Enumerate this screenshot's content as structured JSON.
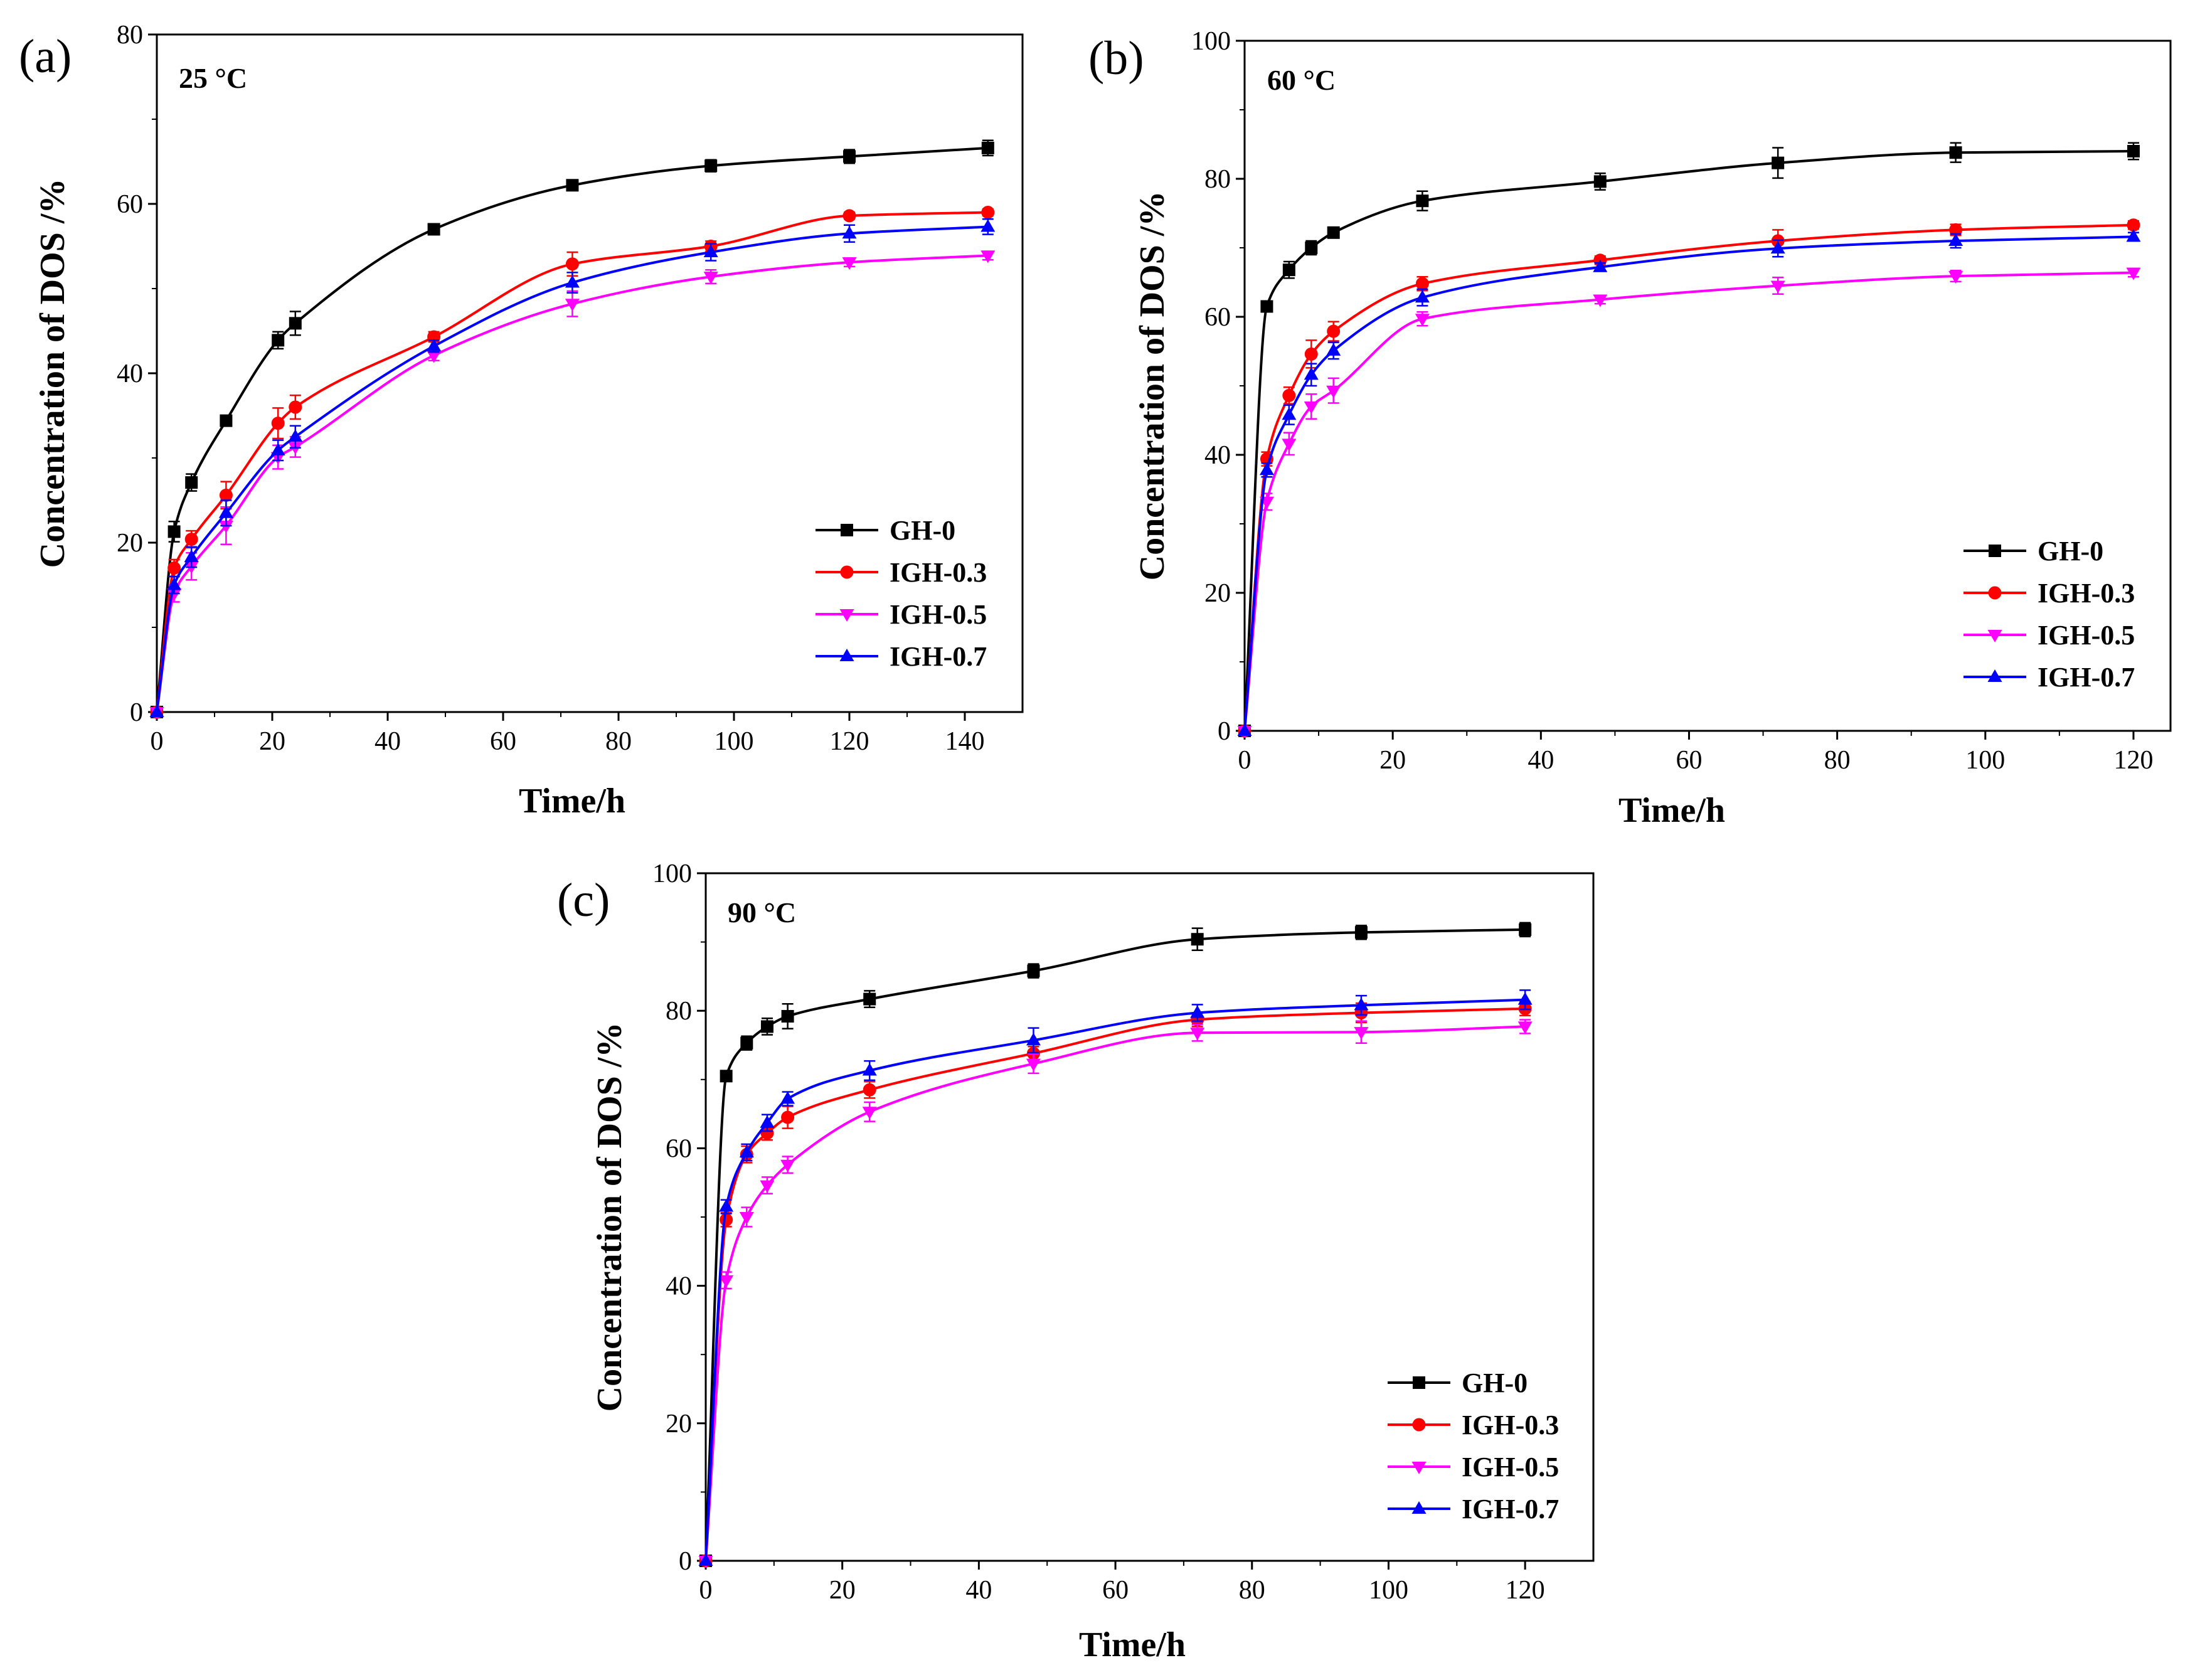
{
  "figure": {
    "legend_placement": "bottom-right (inside plot area of each panel)"
  },
  "chart_data": [
    {
      "type": "line",
      "panel_label": "(a)",
      "temperature_label": "25 °C",
      "xlabel": "Time/h",
      "ylabel": "Concentration of DOS /%",
      "xlim": [
        0,
        150
      ],
      "ylim": [
        0,
        80
      ],
      "xticks": [
        0,
        20,
        40,
        60,
        80,
        100,
        120,
        140
      ],
      "yticks": [
        0,
        20,
        40,
        60,
        80
      ],
      "legend": "bottom-right",
      "x": [
        0,
        3,
        6,
        12,
        21,
        24,
        48,
        72,
        96,
        120,
        144
      ],
      "series": [
        {
          "name": "GH-0",
          "color": "#000000",
          "marker": "square",
          "values": [
            0,
            21.3,
            27.1,
            34.4,
            43.9,
            45.9,
            57.0,
            62.2,
            64.5,
            65.6,
            66.6
          ],
          "errors": [
            0,
            1.2,
            1.0,
            0.6,
            1.0,
            1.4,
            0.5,
            0.6,
            0.7,
            0.8,
            0.9
          ]
        },
        {
          "name": "IGH-0.3",
          "color": "#ff0000",
          "marker": "circle",
          "values": [
            0,
            17.0,
            20.4,
            25.6,
            34.1,
            36.0,
            44.3,
            52.9,
            55.0,
            58.6,
            59.0
          ],
          "errors": [
            0,
            1.0,
            1.0,
            1.6,
            1.8,
            1.4,
            0.6,
            1.4,
            0.6,
            0.4,
            0.4
          ]
        },
        {
          "name": "IGH-0.5",
          "color": "#ff00ff",
          "marker": "triangle-down",
          "values": [
            0,
            14.0,
            17.2,
            22.0,
            30.1,
            31.3,
            42.1,
            48.2,
            51.4,
            53.1,
            53.9
          ],
          "errors": [
            0,
            1.0,
            1.6,
            2.2,
            1.4,
            1.2,
            0.6,
            1.5,
            0.8,
            0.5,
            0.5
          ]
        },
        {
          "name": "IGH-0.7",
          "color": "#0000ff",
          "marker": "triangle-up",
          "values": [
            0,
            15.0,
            18.3,
            23.5,
            30.9,
            32.5,
            43.2,
            50.7,
            54.3,
            56.5,
            57.3
          ],
          "errors": [
            0,
            1.0,
            1.2,
            1.5,
            1.2,
            1.3,
            0.7,
            1.2,
            1.0,
            1.0,
            0.9
          ]
        }
      ]
    },
    {
      "type": "line",
      "panel_label": "(b)",
      "temperature_label": "60 °C",
      "xlabel": "Time/h",
      "ylabel": "Concentration of DOS /%",
      "xlim": [
        0,
        125
      ],
      "ylim": [
        0,
        100
      ],
      "xticks": [
        0,
        20,
        40,
        60,
        80,
        100,
        120
      ],
      "yticks": [
        0,
        20,
        40,
        60,
        80,
        100
      ],
      "legend": "bottom-right",
      "x": [
        0,
        3,
        6,
        9,
        12,
        24,
        48,
        72,
        96,
        120
      ],
      "series": [
        {
          "name": "GH-0",
          "color": "#000000",
          "marker": "square",
          "values": [
            0,
            61.5,
            66.8,
            70.0,
            72.2,
            76.8,
            79.6,
            82.3,
            83.8,
            84.0
          ],
          "errors": [
            0,
            0.8,
            1.2,
            1.0,
            0.6,
            1.4,
            1.2,
            2.2,
            1.4,
            1.2
          ]
        },
        {
          "name": "IGH-0.3",
          "color": "#ff0000",
          "marker": "circle",
          "values": [
            0,
            39.4,
            48.6,
            54.6,
            57.9,
            64.8,
            68.2,
            71.0,
            72.6,
            73.3
          ],
          "errors": [
            0,
            1.0,
            1.2,
            2.0,
            1.4,
            1.0,
            0.6,
            1.6,
            0.8,
            0.6
          ]
        },
        {
          "name": "IGH-0.5",
          "color": "#ff00ff",
          "marker": "triangle-down",
          "values": [
            0,
            33.2,
            41.6,
            47.0,
            49.3,
            59.7,
            62.5,
            64.5,
            65.9,
            66.4
          ],
          "errors": [
            0,
            1.2,
            1.6,
            1.8,
            1.8,
            1.0,
            0.6,
            1.2,
            0.8,
            0.6
          ]
        },
        {
          "name": "IGH-0.7",
          "color": "#0000ff",
          "marker": "triangle-up",
          "values": [
            0,
            37.8,
            45.8,
            51.6,
            55.1,
            62.8,
            67.2,
            69.9,
            71.0,
            71.6
          ],
          "errors": [
            0,
            1.0,
            1.4,
            1.6,
            1.2,
            1.2,
            0.6,
            1.2,
            1.0,
            0.6
          ]
        }
      ]
    },
    {
      "type": "line",
      "panel_label": "(c)",
      "temperature_label": "90 °C",
      "xlabel": "Time/h",
      "ylabel": "Concentration of DOS /%",
      "xlim": [
        0,
        130
      ],
      "ylim": [
        0,
        100
      ],
      "xticks": [
        0,
        20,
        40,
        60,
        80,
        100,
        120
      ],
      "yticks": [
        0,
        20,
        40,
        60,
        80,
        100
      ],
      "legend": "bottom-right",
      "x": [
        0,
        3,
        6,
        9,
        12,
        24,
        48,
        72,
        96,
        120
      ],
      "series": [
        {
          "name": "GH-0",
          "color": "#000000",
          "marker": "square",
          "values": [
            0,
            70.5,
            75.3,
            77.7,
            79.2,
            81.7,
            85.8,
            90.4,
            91.4,
            91.8
          ],
          "errors": [
            0,
            0.6,
            1.0,
            1.2,
            1.8,
            1.2,
            1.0,
            1.6,
            1.0,
            1.0
          ]
        },
        {
          "name": "IGH-0.3",
          "color": "#ff0000",
          "marker": "circle",
          "values": [
            0,
            49.6,
            59.1,
            62.2,
            64.5,
            68.5,
            73.8,
            78.7,
            79.7,
            80.3
          ],
          "errors": [
            0,
            1.0,
            1.2,
            1.0,
            1.6,
            1.2,
            1.0,
            1.0,
            1.4,
            1.0
          ]
        },
        {
          "name": "IGH-0.5",
          "color": "#ff00ff",
          "marker": "triangle-down",
          "values": [
            0,
            40.8,
            50.0,
            54.6,
            57.6,
            65.3,
            72.3,
            76.8,
            76.9,
            77.7
          ],
          "errors": [
            0,
            1.2,
            1.4,
            1.2,
            1.2,
            1.4,
            1.4,
            1.2,
            1.6,
            1.0
          ]
        },
        {
          "name": "IGH-0.7",
          "color": "#0000ff",
          "marker": "triangle-up",
          "values": [
            0,
            51.5,
            59.4,
            63.7,
            67.2,
            71.3,
            75.7,
            79.7,
            80.8,
            81.6
          ],
          "errors": [
            0,
            1.0,
            1.2,
            1.2,
            1.0,
            1.4,
            1.8,
            1.2,
            1.4,
            1.4
          ]
        }
      ]
    }
  ]
}
